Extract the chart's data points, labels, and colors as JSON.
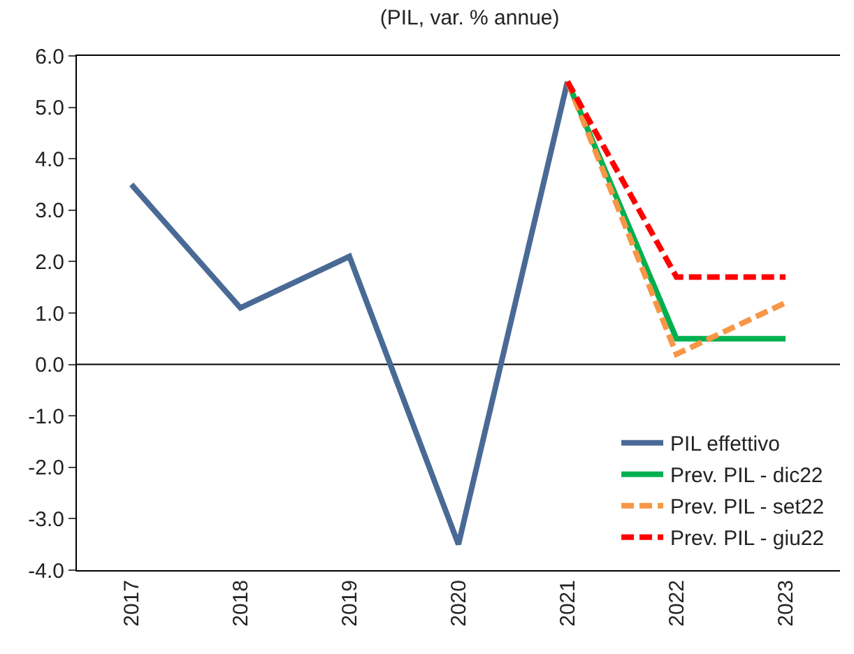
{
  "chart_data": {
    "type": "line",
    "title": "(PIL, var. % annue)",
    "categories": [
      "2017",
      "2018",
      "2019",
      "2020",
      "2021",
      "2022",
      "2023"
    ],
    "series": [
      {
        "name": "PIL effettivo",
        "color": "#4a6a96",
        "line_style": "solid",
        "values": [
          3.5,
          1.1,
          2.1,
          -3.5,
          5.5,
          null,
          null
        ]
      },
      {
        "name": "Prev. PIL - dic22",
        "color": "#00b050",
        "line_style": "solid",
        "values": [
          null,
          null,
          null,
          null,
          5.5,
          0.5,
          0.5
        ]
      },
      {
        "name": "Prev. PIL - set22",
        "color": "#f79646",
        "line_style": "dashed",
        "values": [
          null,
          null,
          null,
          null,
          5.5,
          0.2,
          1.2
        ]
      },
      {
        "name": "Prev. PIL - giu22",
        "color": "#ff0000",
        "line_style": "dashed",
        "values": [
          null,
          null,
          null,
          null,
          5.5,
          1.7,
          1.7
        ]
      }
    ],
    "ylim": [
      -4,
      6
    ],
    "yticks": [
      {
        "value": -4,
        "label": "-4.0"
      },
      {
        "value": -3,
        "label": "-3.0"
      },
      {
        "value": -2,
        "label": "-2.0"
      },
      {
        "value": -1,
        "label": "-1.0"
      },
      {
        "value": 0,
        "label": "0.0"
      },
      {
        "value": 1,
        "label": "1.0"
      },
      {
        "value": 2,
        "label": "2.0"
      },
      {
        "value": 3,
        "label": "3.0"
      },
      {
        "value": 4,
        "label": "4.0"
      },
      {
        "value": 5,
        "label": "5.0"
      },
      {
        "value": 6,
        "label": "6.0"
      }
    ],
    "ref_lines": [
      {
        "axis": "y",
        "value": 0,
        "color": "#000000",
        "line_style": "solid"
      }
    ],
    "legend": "bottom right",
    "grid": false,
    "marker": "none"
  }
}
